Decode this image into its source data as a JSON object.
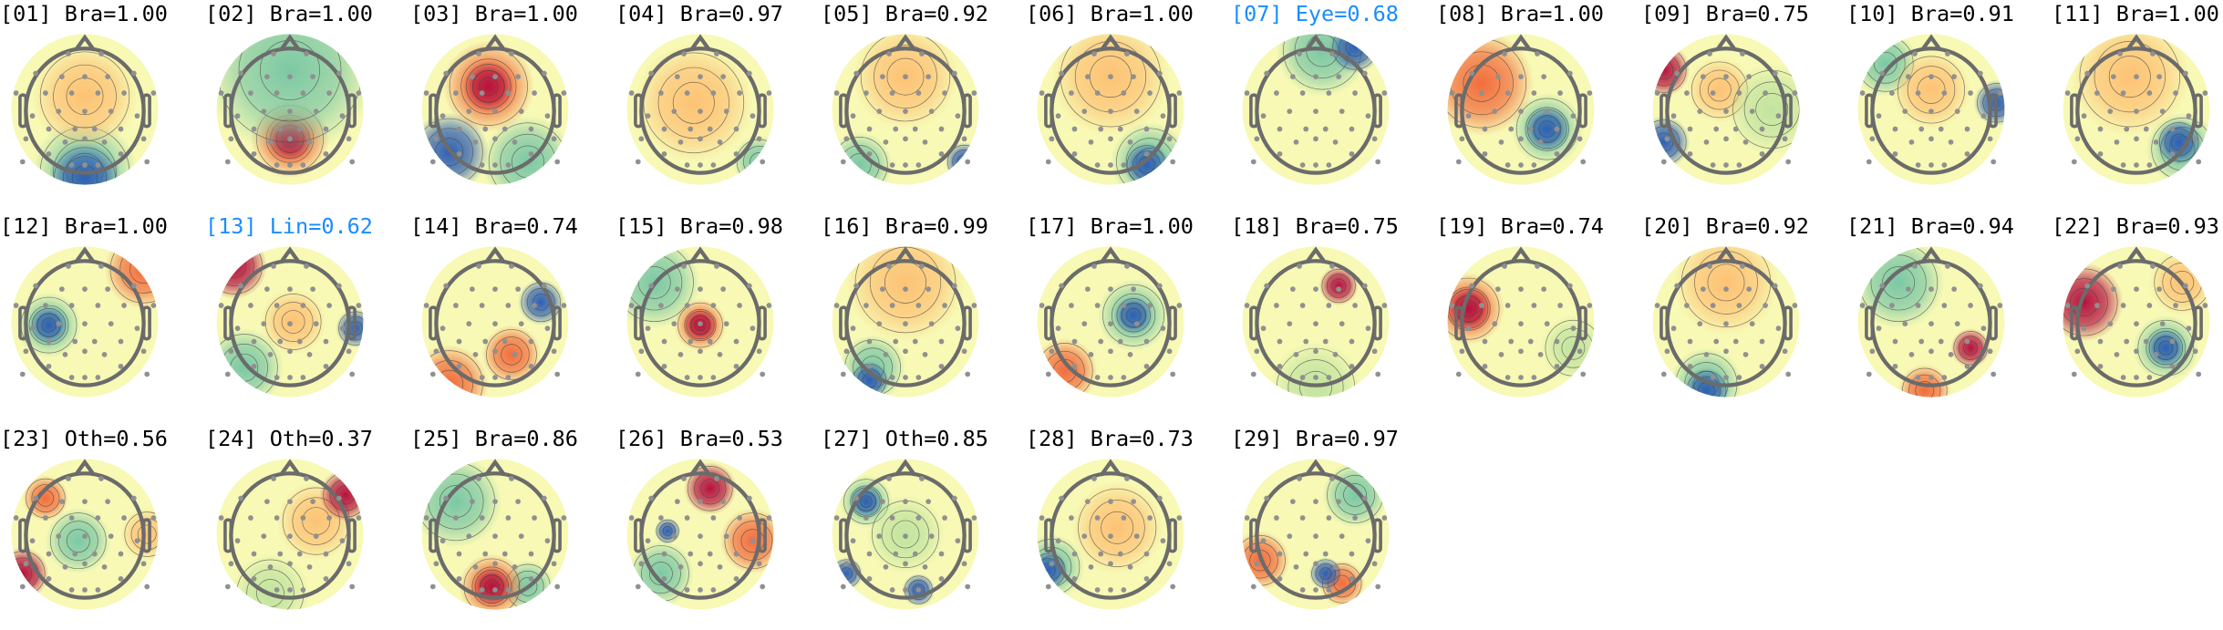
{
  "chart_data": {
    "type": "topomap-grid",
    "highlight_color": "#1a8cff",
    "colormap": "Spectral_r",
    "components": [
      {
        "id": "01",
        "label": "Bra",
        "score": "1.00",
        "highlight": false
      },
      {
        "id": "02",
        "label": "Bra",
        "score": "1.00",
        "highlight": false
      },
      {
        "id": "03",
        "label": "Bra",
        "score": "1.00",
        "highlight": false
      },
      {
        "id": "04",
        "label": "Bra",
        "score": "0.97",
        "highlight": false
      },
      {
        "id": "05",
        "label": "Bra",
        "score": "0.92",
        "highlight": false
      },
      {
        "id": "06",
        "label": "Bra",
        "score": "1.00",
        "highlight": false
      },
      {
        "id": "07",
        "label": "Eye",
        "score": "0.68",
        "highlight": true
      },
      {
        "id": "08",
        "label": "Bra",
        "score": "1.00",
        "highlight": false
      },
      {
        "id": "09",
        "label": "Bra",
        "score": "0.75",
        "highlight": false
      },
      {
        "id": "10",
        "label": "Bra",
        "score": "0.91",
        "highlight": false
      },
      {
        "id": "11",
        "label": "Bra",
        "score": "1.00",
        "highlight": false
      },
      {
        "id": "12",
        "label": "Bra",
        "score": "1.00",
        "highlight": false
      },
      {
        "id": "13",
        "label": "Lin",
        "score": "0.62",
        "highlight": true
      },
      {
        "id": "14",
        "label": "Bra",
        "score": "0.74",
        "highlight": false
      },
      {
        "id": "15",
        "label": "Bra",
        "score": "0.98",
        "highlight": false
      },
      {
        "id": "16",
        "label": "Bra",
        "score": "0.99",
        "highlight": false
      },
      {
        "id": "17",
        "label": "Bra",
        "score": "1.00",
        "highlight": false
      },
      {
        "id": "18",
        "label": "Bra",
        "score": "0.75",
        "highlight": false
      },
      {
        "id": "19",
        "label": "Bra",
        "score": "0.74",
        "highlight": false
      },
      {
        "id": "20",
        "label": "Bra",
        "score": "0.92",
        "highlight": false
      },
      {
        "id": "21",
        "label": "Bra",
        "score": "0.94",
        "highlight": false
      },
      {
        "id": "22",
        "label": "Bra",
        "score": "0.93",
        "highlight": false
      },
      {
        "id": "23",
        "label": "Oth",
        "score": "0.56",
        "highlight": false
      },
      {
        "id": "24",
        "label": "Oth",
        "score": "0.37",
        "highlight": false
      },
      {
        "id": "25",
        "label": "Bra",
        "score": "0.86",
        "highlight": false
      },
      {
        "id": "26",
        "label": "Bra",
        "score": "0.53",
        "highlight": false
      },
      {
        "id": "27",
        "label": "Oth",
        "score": "0.85",
        "highlight": false
      },
      {
        "id": "28",
        "label": "Bra",
        "score": "0.73",
        "highlight": false
      },
      {
        "id": "29",
        "label": "Bra",
        "score": "0.97",
        "highlight": false
      }
    ]
  }
}
